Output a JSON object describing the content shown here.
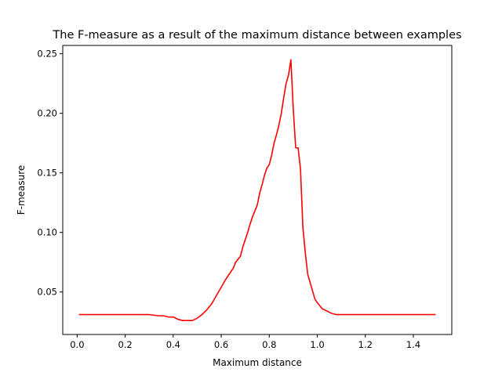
{
  "chart_data": {
    "type": "line",
    "title": "The F-measure as a result of the maximum distance between examples",
    "xlabel": "Maximum distance",
    "ylabel": "F-measure",
    "xlim": [
      -0.06,
      1.56
    ],
    "ylim": [
      0.0143,
      0.257
    ],
    "xticks": [
      0.0,
      0.2,
      0.4,
      0.6,
      0.8,
      1.0,
      1.2,
      1.4
    ],
    "xtick_labels": [
      "0.0",
      "0.2",
      "0.4",
      "0.6",
      "0.8",
      "1.0",
      "1.2",
      "1.4"
    ],
    "yticks": [
      0.05,
      0.1,
      0.15,
      0.2,
      0.25
    ],
    "ytick_labels": [
      "0.05",
      "0.10",
      "0.15",
      "0.20",
      "0.25"
    ],
    "grid": false,
    "line_color": "#ff0000",
    "series": [
      {
        "x": [
          0.01,
          0.05,
          0.1,
          0.15,
          0.2,
          0.25,
          0.3,
          0.32,
          0.34,
          0.36,
          0.38,
          0.4,
          0.42,
          0.44,
          0.46,
          0.48,
          0.5,
          0.52,
          0.54,
          0.56,
          0.58,
          0.6,
          0.62,
          0.63,
          0.65,
          0.66,
          0.68,
          0.69,
          0.7,
          0.71,
          0.72,
          0.73,
          0.74,
          0.75,
          0.76,
          0.77,
          0.78,
          0.79,
          0.8,
          0.81,
          0.82,
          0.83,
          0.84,
          0.85,
          0.86,
          0.87,
          0.88,
          0.89,
          0.9,
          0.91,
          0.92,
          0.93,
          0.94,
          0.95,
          0.96,
          0.97,
          0.98,
          0.99,
          1.0,
          1.02,
          1.04,
          1.06,
          1.08,
          1.1,
          1.15,
          1.2,
          1.3,
          1.4,
          1.49
        ],
        "y": [
          0.031,
          0.031,
          0.031,
          0.031,
          0.031,
          0.031,
          0.031,
          0.0305,
          0.03,
          0.03,
          0.029,
          0.029,
          0.027,
          0.026,
          0.026,
          0.026,
          0.028,
          0.031,
          0.035,
          0.04,
          0.047,
          0.054,
          0.061,
          0.064,
          0.07,
          0.075,
          0.08,
          0.088,
          0.094,
          0.1,
          0.107,
          0.113,
          0.118,
          0.123,
          0.133,
          0.14,
          0.148,
          0.154,
          0.157,
          0.165,
          0.175,
          0.182,
          0.19,
          0.2,
          0.213,
          0.225,
          0.232,
          0.245,
          0.203,
          0.171,
          0.171,
          0.153,
          0.104,
          0.083,
          0.065,
          0.058,
          0.051,
          0.044,
          0.041,
          0.036,
          0.034,
          0.032,
          0.031,
          0.031,
          0.031,
          0.031,
          0.031,
          0.031,
          0.031
        ]
      }
    ]
  }
}
